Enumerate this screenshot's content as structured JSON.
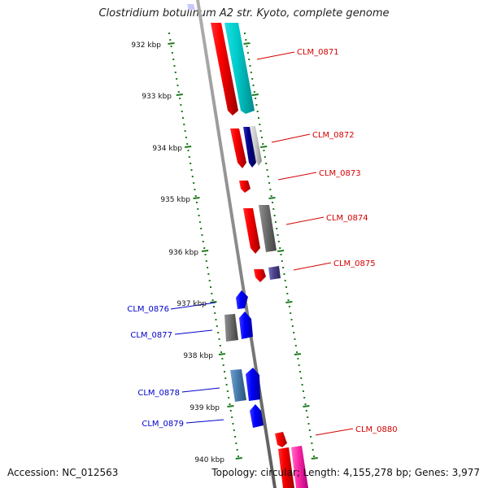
{
  "title": "Clostridium botulinum A2 str. Kyoto, complete genome",
  "footer": {
    "accession": "Accession: NC_012563",
    "topology": "Topology: circular",
    "length": "Length: 4,155,278 bp",
    "genes": "Genes: 3,977"
  },
  "colors": {
    "scale_ticks": "#1f7a1f",
    "label_red": "#d40000",
    "label_blue": "#0000cc",
    "axis": "#808080"
  },
  "scale_labels": [
    "932 kbp",
    "933 kbp",
    "934 kbp",
    "935 kbp",
    "936 kbp",
    "937 kbp",
    "938 kbp",
    "939 kbp",
    "940 kbp"
  ],
  "gene_labels": [
    {
      "name": "CLM_0871",
      "color": "red"
    },
    {
      "name": "CLM_0872",
      "color": "red"
    },
    {
      "name": "CLM_0873",
      "color": "red"
    },
    {
      "name": "CLM_0874",
      "color": "red"
    },
    {
      "name": "CLM_0875",
      "color": "red"
    },
    {
      "name": "CLM_0876",
      "color": "blue"
    },
    {
      "name": "CLM_0877",
      "color": "blue"
    },
    {
      "name": "CLM_0878",
      "color": "blue"
    },
    {
      "name": "CLM_0879",
      "color": "blue"
    },
    {
      "name": "CLM_0880",
      "color": "red"
    }
  ]
}
